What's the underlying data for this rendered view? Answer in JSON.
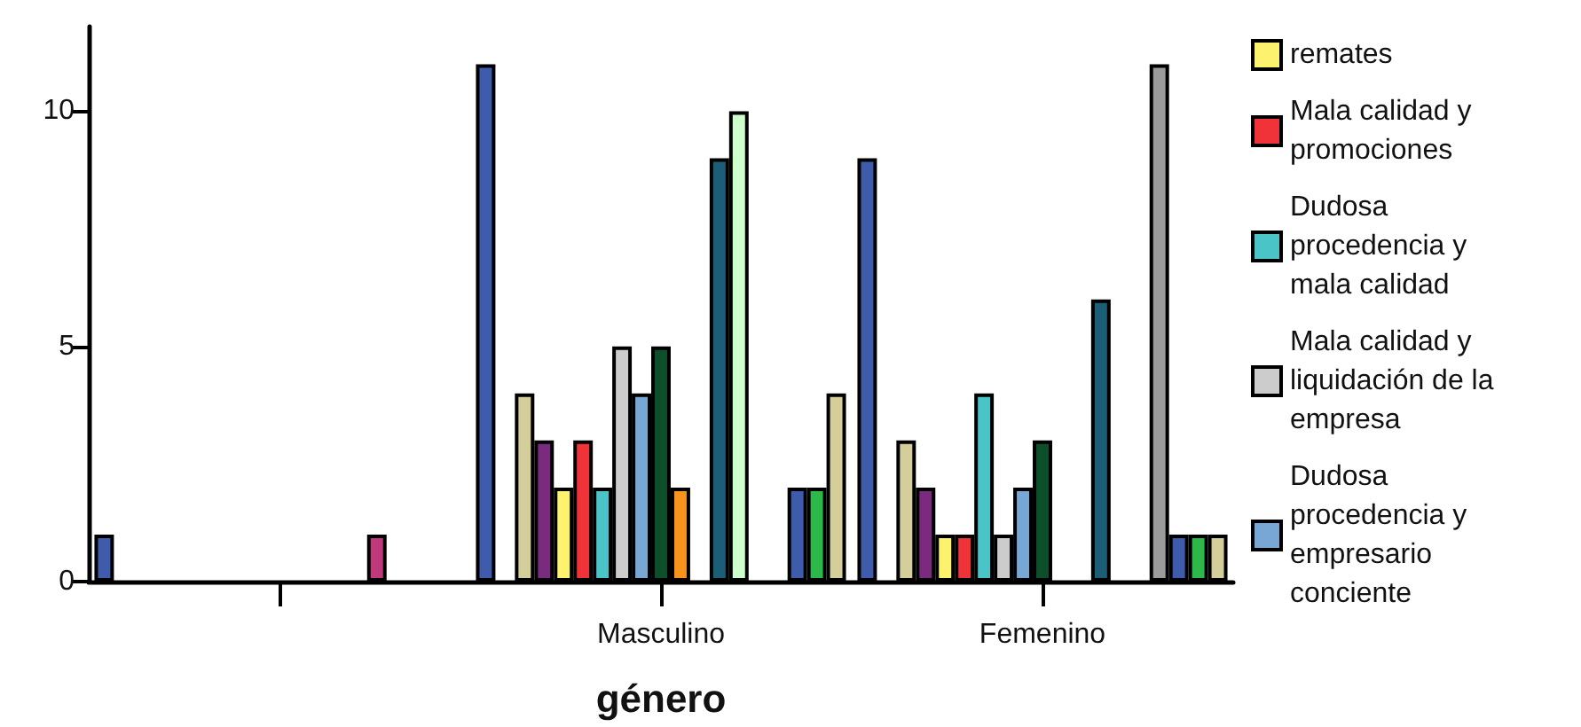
{
  "chart_data": {
    "type": "bar",
    "xlabel": "género",
    "categories": [
      null,
      "Masculino",
      "Femenino"
    ],
    "ylim": [
      0,
      11.8
    ],
    "yticks": [
      0,
      5,
      10
    ],
    "grid": false,
    "legend": "right",
    "series": [
      {
        "color": "#3f5bab",
        "values": [
          1,
          11,
          9
        ]
      },
      {
        "color": "#2eb84a",
        "values": [
          0,
          null,
          null
        ]
      },
      {
        "color": "#d4cf9a",
        "values": [
          0,
          4,
          3
        ]
      },
      {
        "color": "#7a2a7f",
        "values": [
          0,
          3,
          2
        ]
      },
      {
        "name": "remates",
        "color": "#fdf26e",
        "values": [
          0,
          2,
          1
        ]
      },
      {
        "name": "Mala calidad y promociones",
        "color": "#ef3339",
        "values": [
          0,
          3,
          1
        ]
      },
      {
        "name": "Dudosa procedencia y mala calidad",
        "color": "#4bc4c8",
        "values": [
          0,
          2,
          4
        ]
      },
      {
        "name": "Mala calidad y liquidación de la empresa",
        "color": "#cccccc",
        "values": [
          0,
          5,
          1
        ]
      },
      {
        "name": "Dudosa procedencia y empresario conciente",
        "color": "#78a7d6",
        "values": [
          0,
          4,
          2
        ]
      },
      {
        "color": "#0d4f2a",
        "values": [
          0,
          5,
          3
        ]
      },
      {
        "color": "#f7941d",
        "values": [
          0,
          2,
          0
        ]
      },
      {
        "color": "#ddb8ee",
        "values": [
          0,
          null,
          null
        ]
      },
      {
        "color": "#1b5e75",
        "values": [
          0,
          9,
          6
        ]
      },
      {
        "color": "#ccffcc",
        "values": [
          0,
          10,
          null
        ]
      },
      {
        "color": "#bf3a7a",
        "values": [
          1,
          null,
          null
        ]
      },
      {
        "color": "#9b9b9b",
        "values": [
          0,
          null,
          11
        ]
      },
      {
        "color": "#3f5bab",
        "values": [
          0,
          2,
          1
        ]
      },
      {
        "color": "#2eb84a",
        "values": [
          0,
          2,
          1
        ]
      },
      {
        "color": "#d4cf9a",
        "values": [
          0,
          4,
          1
        ]
      }
    ]
  }
}
